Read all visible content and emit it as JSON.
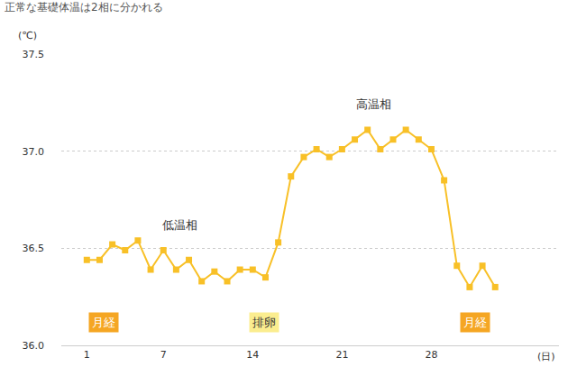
{
  "chart_data": {
    "type": "line",
    "title": "正常な基礎体温は2相に分かれる",
    "x_label": "(日)",
    "y_label": "(℃)",
    "x": [
      1,
      2,
      3,
      4,
      5,
      6,
      7,
      8,
      9,
      10,
      11,
      12,
      13,
      14,
      15,
      16,
      17,
      18,
      19,
      20,
      21,
      22,
      23,
      24,
      25,
      26,
      27,
      28,
      29,
      30,
      31,
      32,
      33
    ],
    "values": [
      36.44,
      36.44,
      36.52,
      36.49,
      36.54,
      36.39,
      36.49,
      36.39,
      36.44,
      36.33,
      36.38,
      36.33,
      36.39,
      36.39,
      36.35,
      36.53,
      36.87,
      36.97,
      37.01,
      36.97,
      37.01,
      37.06,
      37.11,
      37.01,
      37.06,
      37.11,
      37.06,
      37.01,
      36.85,
      36.41,
      36.3,
      36.41,
      36.3
    ],
    "color": "#f8c027",
    "marker": "square",
    "xlim": [
      -1,
      38
    ],
    "xticks": [
      1,
      7,
      14,
      21,
      28
    ],
    "ylim": [
      36.0,
      37.5
    ],
    "yticks": [
      {
        "value": 36.0,
        "label": "36.0"
      },
      {
        "value": 36.5,
        "label": "36.5"
      },
      {
        "value": 37.0,
        "label": "37.0"
      },
      {
        "value": 37.5,
        "label": "37.5"
      }
    ],
    "grid": true,
    "annotations": [
      {
        "text": "低温相",
        "x": 8.3,
        "y": 36.62
      },
      {
        "text": "高温相",
        "x": 23.5,
        "y": 37.24
      },
      {
        "text": "月経",
        "x": 2.3,
        "y": 36.12,
        "color": "#f5a623"
      },
      {
        "text": "排卵",
        "x": 14.9,
        "y": 36.12,
        "color": "#fbed8f"
      },
      {
        "text": "月経",
        "x": 31.4,
        "y": 36.12,
        "color": "#f5a623"
      }
    ]
  }
}
